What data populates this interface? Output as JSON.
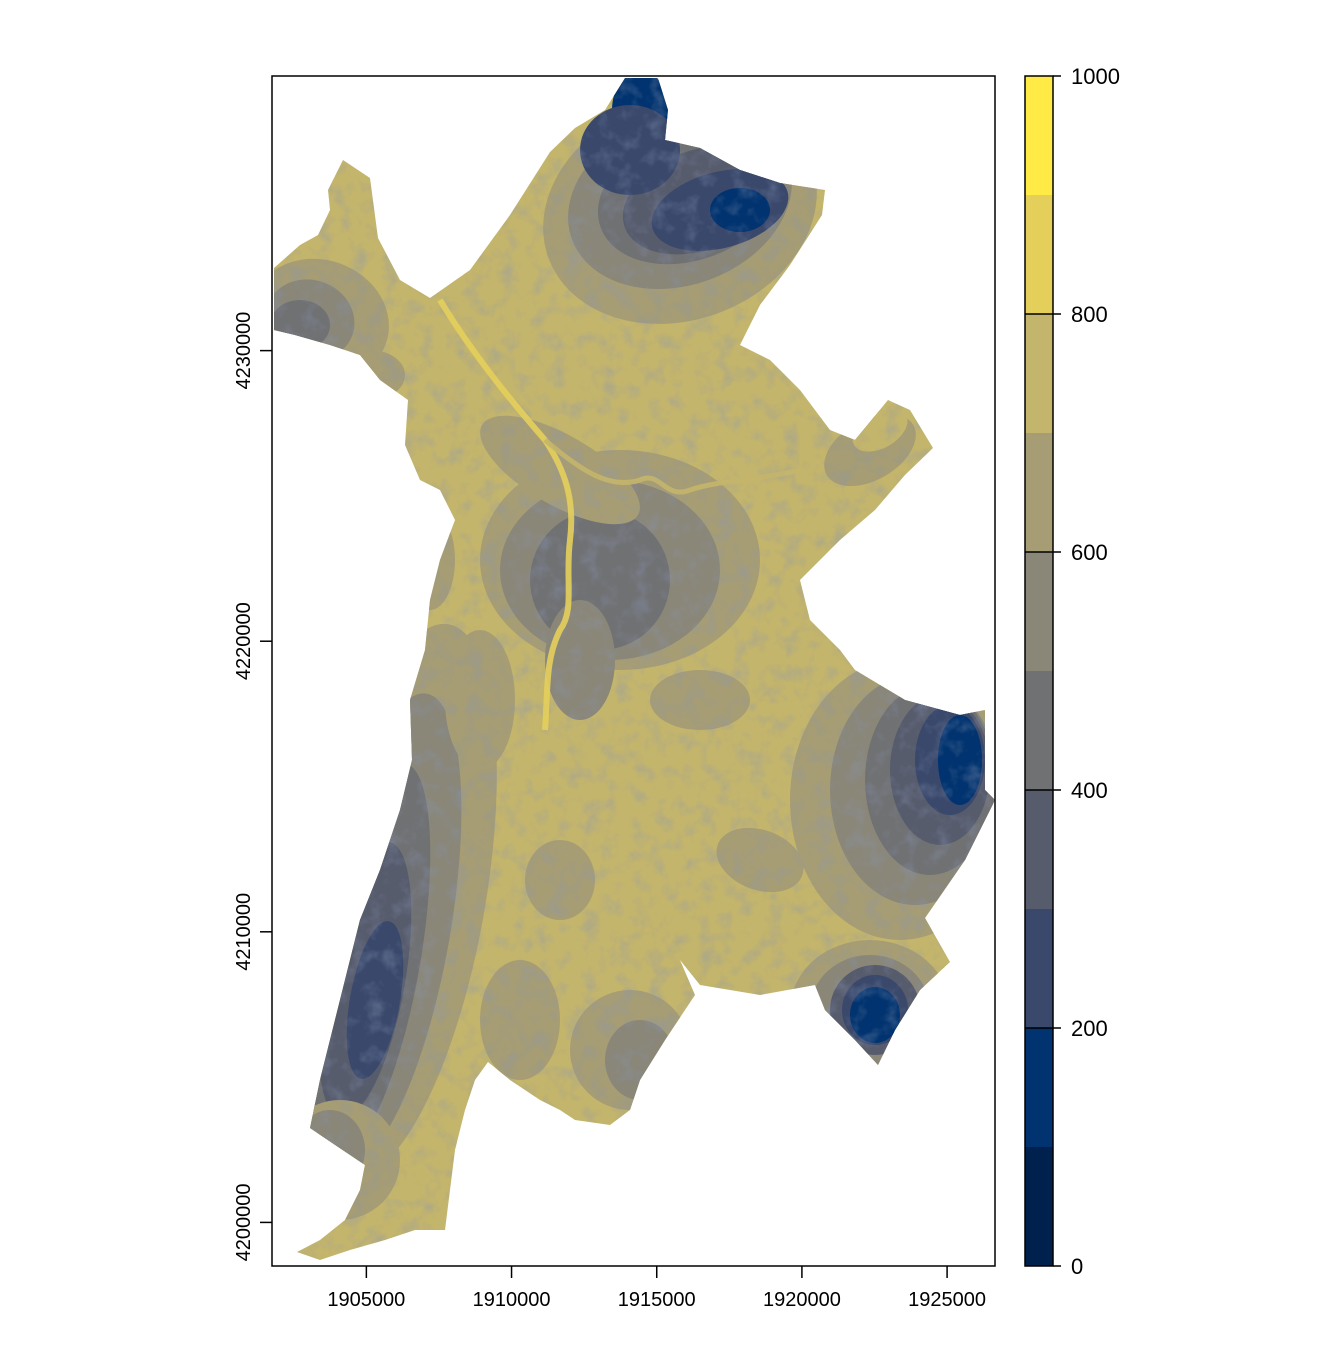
{
  "map": {
    "x_axis": {
      "ticks": [
        {
          "value": 1905000,
          "label": "1905000"
        },
        {
          "value": 1910000,
          "label": "1910000"
        },
        {
          "value": 1915000,
          "label": "1915000"
        },
        {
          "value": 1920000,
          "label": "1920000"
        },
        {
          "value": 1925000,
          "label": "1925000"
        }
      ],
      "range": [
        1901750,
        1926650
      ]
    },
    "y_axis": {
      "ticks": [
        {
          "value": 4200000,
          "label": "4200000"
        },
        {
          "value": 4210000,
          "label": "4210000"
        },
        {
          "value": 4220000,
          "label": "4220000"
        },
        {
          "value": 4230000,
          "label": "4230000"
        }
      ],
      "range": [
        4198500,
        4239450
      ]
    },
    "legend": {
      "placement": "right",
      "ticks": [
        {
          "value": 0,
          "label": "0"
        },
        {
          "value": 200,
          "label": "200"
        },
        {
          "value": 400,
          "label": "400"
        },
        {
          "value": 600,
          "label": "600"
        },
        {
          "value": 800,
          "label": "800"
        },
        {
          "value": 1000,
          "label": "1000"
        }
      ],
      "range": [
        0,
        1000
      ],
      "bands": [
        {
          "from": 0,
          "to": 100,
          "color": "#00204d"
        },
        {
          "from": 100,
          "to": 200,
          "color": "#00336f"
        },
        {
          "from": 200,
          "to": 300,
          "color": "#39486b"
        },
        {
          "from": 300,
          "to": 400,
          "color": "#575c6d"
        },
        {
          "from": 400,
          "to": 500,
          "color": "#707173"
        },
        {
          "from": 500,
          "to": 600,
          "color": "#8a8779"
        },
        {
          "from": 600,
          "to": 700,
          "color": "#a69d75"
        },
        {
          "from": 700,
          "to": 800,
          "color": "#c4b56c"
        },
        {
          "from": 800,
          "to": 900,
          "color": "#e4cf5b"
        },
        {
          "from": 900,
          "to": 1000,
          "color": "#ffea46"
        }
      ]
    }
  }
}
